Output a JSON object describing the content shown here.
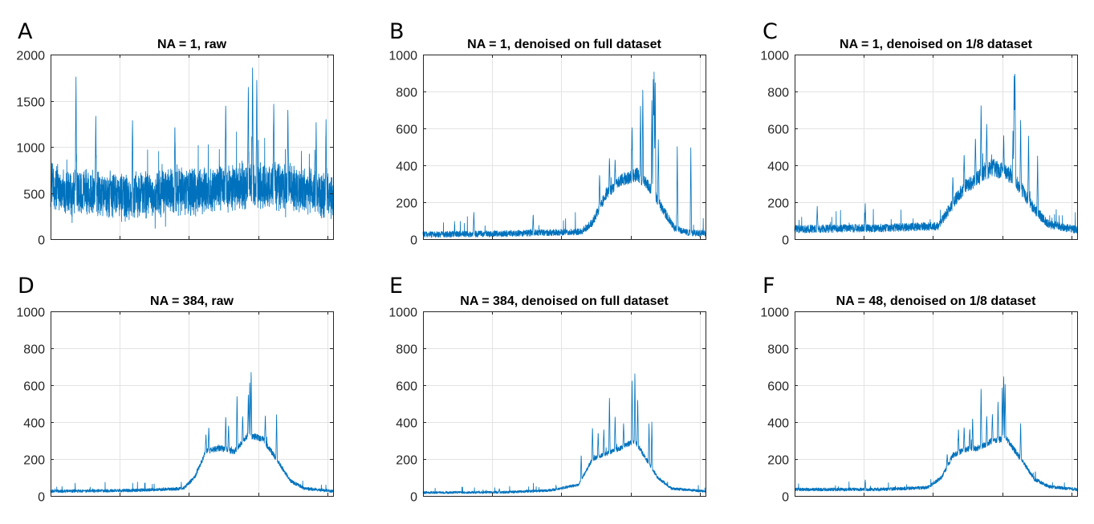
{
  "figure": {
    "series_color": "#0072BD"
  },
  "chart_data": [
    {
      "type": "line",
      "panel_letter": "A",
      "title": "NA = 1, raw",
      "ylim": [
        0,
        2000
      ],
      "yticks": [
        0,
        500,
        1000,
        1500,
        2000
      ],
      "xlim": [
        0,
        1000
      ],
      "x_tick_labels_shown": false,
      "grid": true,
      "series": [
        {
          "shape": "raw",
          "baseline": 480,
          "envelope": [
            [
              0,
              80
            ],
            [
              250,
              -20
            ],
            [
              330,
              0
            ],
            [
              420,
              20
            ],
            [
              500,
              40
            ],
            [
              600,
              60
            ],
            [
              700,
              110
            ],
            [
              800,
              100
            ],
            [
              900,
              40
            ],
            [
              1000,
              0
            ]
          ],
          "noise_half_range": 280,
          "spikes": [
            [
              90,
              1780
            ],
            [
              160,
              1350
            ],
            [
              290,
              1320
            ],
            [
              440,
              1250
            ],
            [
              620,
              1490
            ],
            [
              700,
              1700
            ],
            [
              715,
              1920
            ],
            [
              730,
              1780
            ],
            [
              790,
              1500
            ],
            [
              840,
              1420
            ],
            [
              940,
              1270
            ],
            [
              975,
              1300
            ]
          ],
          "points": 2400
        }
      ]
    },
    {
      "type": "line",
      "panel_letter": "B",
      "title": "NA = 1, denoised on full dataset",
      "ylim": [
        0,
        1000
      ],
      "yticks": [
        0,
        200,
        400,
        600,
        800,
        1000
      ],
      "xlim": [
        0,
        1000
      ],
      "x_tick_labels_shown": false,
      "grid": true,
      "series": [
        {
          "shape": "spectrum",
          "envelope": [
            [
              0,
              25
            ],
            [
              300,
              30
            ],
            [
              560,
              40
            ],
            [
              600,
              90
            ],
            [
              650,
              250
            ],
            [
              700,
              320
            ],
            [
              760,
              350
            ],
            [
              800,
              290
            ],
            [
              850,
              160
            ],
            [
              890,
              60
            ],
            [
              940,
              35
            ],
            [
              1000,
              30
            ]
          ],
          "noise_half_range": 60,
          "spikes": [
            [
              180,
              150
            ],
            [
              390,
              140
            ],
            [
              625,
              360
            ],
            [
              660,
              450
            ],
            [
              680,
              440
            ],
            [
              740,
              620
            ],
            [
              770,
              740
            ],
            [
              778,
              830
            ],
            [
              810,
              770
            ],
            [
              815,
              890
            ],
            [
              818,
              930
            ],
            [
              822,
              870
            ],
            [
              833,
              550
            ],
            [
              900,
              510
            ],
            [
              948,
              500
            ]
          ],
          "points": 2000
        }
      ]
    },
    {
      "type": "line",
      "panel_letter": "C",
      "title": "NA = 1, denoised on 1/8 dataset",
      "ylim": [
        0,
        1000
      ],
      "yticks": [
        0,
        200,
        400,
        600,
        800,
        1000
      ],
      "xlim": [
        0,
        1000
      ],
      "x_tick_labels_shown": false,
      "grid": true,
      "series": [
        {
          "shape": "spectrum",
          "envelope": [
            [
              0,
              55
            ],
            [
              300,
              60
            ],
            [
              510,
              70
            ],
            [
              550,
              170
            ],
            [
              600,
              280
            ],
            [
              650,
              330
            ],
            [
              700,
              390
            ],
            [
              760,
              350
            ],
            [
              800,
              280
            ],
            [
              850,
              160
            ],
            [
              900,
              80
            ],
            [
              1000,
              50
            ]
          ],
          "noise_half_range": 70,
          "spikes": [
            [
              80,
              180
            ],
            [
              250,
              200
            ],
            [
              560,
              350
            ],
            [
              600,
              470
            ],
            [
              640,
              560
            ],
            [
              660,
              750
            ],
            [
              680,
              640
            ],
            [
              740,
              570
            ],
            [
              773,
              600
            ],
            [
              777,
              910
            ],
            [
              780,
              920
            ],
            [
              800,
              660
            ],
            [
              828,
              570
            ],
            [
              860,
              460
            ]
          ],
          "points": 2000
        }
      ]
    },
    {
      "type": "line",
      "panel_letter": "D",
      "title": "NA = 384, raw",
      "ylim": [
        0,
        1000
      ],
      "yticks": [
        0,
        200,
        400,
        600,
        800,
        1000
      ],
      "xlim": [
        0,
        1000
      ],
      "x_tick_labels_shown": false,
      "grid": true,
      "series": [
        {
          "shape": "spectrum",
          "envelope": [
            [
              0,
              25
            ],
            [
              300,
              30
            ],
            [
              470,
              40
            ],
            [
              510,
              100
            ],
            [
              550,
              240
            ],
            [
              600,
              260
            ],
            [
              650,
              240
            ],
            [
              700,
              330
            ],
            [
              750,
              310
            ],
            [
              790,
              220
            ],
            [
              850,
              80
            ],
            [
              900,
              40
            ],
            [
              1000,
              25
            ]
          ],
          "noise_half_range": 30,
          "spikes": [
            [
              550,
              340
            ],
            [
              560,
              380
            ],
            [
              620,
              440
            ],
            [
              630,
              390
            ],
            [
              660,
              560
            ],
            [
              680,
              440
            ],
            [
              700,
              560
            ],
            [
              705,
              630
            ],
            [
              710,
              690
            ],
            [
              760,
              440
            ],
            [
              800,
              450
            ]
          ],
          "points": 2000
        }
      ]
    },
    {
      "type": "line",
      "panel_letter": "E",
      "title": "NA = 384, denoised on full dataset",
      "ylim": [
        0,
        1000
      ],
      "yticks": [
        0,
        200,
        400,
        600,
        800,
        1000
      ],
      "xlim": [
        0,
        1000
      ],
      "x_tick_labels_shown": false,
      "grid": true,
      "series": [
        {
          "shape": "spectrum",
          "envelope": [
            [
              0,
              18
            ],
            [
              300,
              20
            ],
            [
              450,
              30
            ],
            [
              550,
              60
            ],
            [
              600,
              200
            ],
            [
              650,
              230
            ],
            [
              700,
              260
            ],
            [
              750,
              300
            ],
            [
              790,
              200
            ],
            [
              830,
              100
            ],
            [
              880,
              40
            ],
            [
              1000,
              25
            ]
          ],
          "noise_half_range": 25,
          "spikes": [
            [
              270,
              40
            ],
            [
              560,
              230
            ],
            [
              600,
              380
            ],
            [
              620,
              350
            ],
            [
              640,
              370
            ],
            [
              660,
              550
            ],
            [
              680,
              440
            ],
            [
              710,
              400
            ],
            [
              740,
              640
            ],
            [
              750,
              680
            ],
            [
              760,
              530
            ],
            [
              800,
              400
            ],
            [
              810,
              410
            ]
          ],
          "points": 2000
        }
      ]
    },
    {
      "type": "line",
      "panel_letter": "F",
      "title": "NA = 48, denoised on 1/8 dataset",
      "ylim": [
        0,
        1000
      ],
      "yticks": [
        0,
        200,
        400,
        600,
        800,
        1000
      ],
      "xlim": [
        0,
        1000
      ],
      "x_tick_labels_shown": false,
      "grid": true,
      "series": [
        {
          "shape": "spectrum",
          "envelope": [
            [
              0,
              35
            ],
            [
              300,
              35
            ],
            [
              470,
              45
            ],
            [
              520,
              100
            ],
            [
              560,
              220
            ],
            [
              600,
              250
            ],
            [
              650,
              260
            ],
            [
              700,
              300
            ],
            [
              750,
              310
            ],
            [
              800,
              200
            ],
            [
              850,
              90
            ],
            [
              900,
              50
            ],
            [
              1000,
              35
            ]
          ],
          "noise_half_range": 30,
          "spikes": [
            [
              250,
              90
            ],
            [
              540,
              230
            ],
            [
              580,
              370
            ],
            [
              600,
              380
            ],
            [
              620,
              370
            ],
            [
              630,
              430
            ],
            [
              660,
              600
            ],
            [
              680,
              440
            ],
            [
              700,
              450
            ],
            [
              720,
              520
            ],
            [
              735,
              600
            ],
            [
              740,
              665
            ],
            [
              745,
              620
            ],
            [
              800,
              400
            ]
          ],
          "points": 2000
        }
      ]
    }
  ]
}
